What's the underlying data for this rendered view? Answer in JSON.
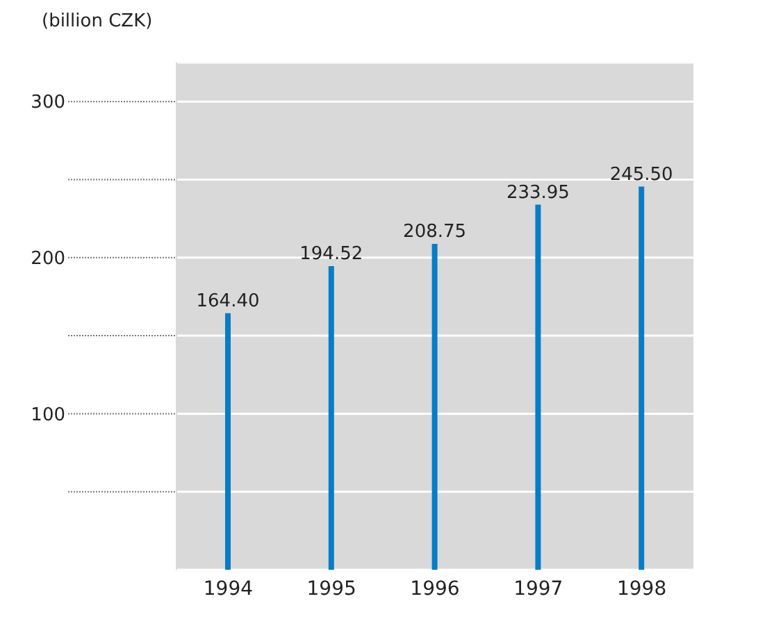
{
  "chart_data": {
    "type": "bar",
    "ylabel": "(billion CZK)",
    "categories": [
      "1994",
      "1995",
      "1996",
      "1997",
      "1998"
    ],
    "values": [
      164.4,
      194.52,
      208.75,
      233.95,
      245.5
    ],
    "value_labels": [
      "164.40",
      "194.52",
      "208.75",
      "233.95",
      "245.50"
    ],
    "color": "#0a7cc4",
    "ylim": [
      0,
      325
    ],
    "yticks": [
      {
        "value": 50,
        "label": null
      },
      100,
      {
        "value": 150,
        "label": null
      },
      200,
      {
        "value": 250,
        "label": null
      },
      300
    ],
    "grid": "y"
  }
}
